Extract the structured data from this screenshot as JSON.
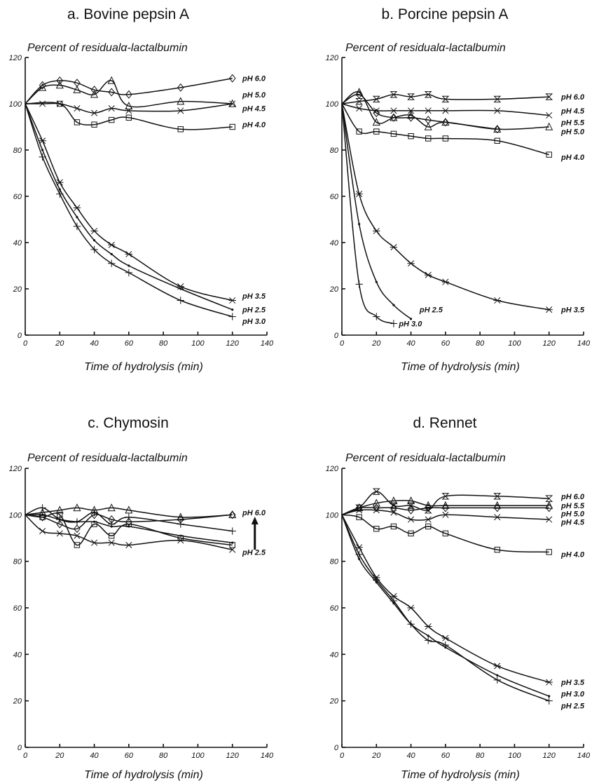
{
  "chart_data": [
    {
      "type": "line",
      "title": "a. Bovine pepsin A",
      "ylabel": "Percent of residualα-lactalbumin",
      "xlabel": "Time of hydrolysis (min)",
      "xlim": [
        0,
        140
      ],
      "ylim": [
        0,
        120
      ],
      "xticks": [
        0,
        20,
        40,
        60,
        80,
        100,
        120,
        140
      ],
      "yticks": [
        0,
        20,
        40,
        60,
        80,
        100,
        120
      ],
      "series": [
        {
          "name": "pH 6.0",
          "marker": "diamond",
          "x": [
            0,
            10,
            20,
            30,
            40,
            50,
            60,
            90,
            120
          ],
          "y": [
            100,
            108,
            110,
            109,
            106,
            105,
            104,
            107,
            111
          ]
        },
        {
          "name": "pH 5.0",
          "marker": "triangle",
          "x": [
            0,
            10,
            20,
            30,
            40,
            50,
            60,
            90,
            120
          ],
          "y": [
            100,
            107,
            108,
            106,
            104,
            110,
            99,
            101,
            100
          ]
        },
        {
          "name": "pH 4.5",
          "marker": "x",
          "x": [
            0,
            10,
            20,
            30,
            40,
            50,
            60,
            90,
            120
          ],
          "y": [
            100,
            100,
            100,
            98,
            96,
            98,
            97,
            97,
            100
          ]
        },
        {
          "name": "pH 4.0",
          "marker": "square",
          "x": [
            0,
            20,
            30,
            40,
            50,
            60,
            90,
            120
          ],
          "y": [
            100,
            100,
            92,
            91,
            93,
            94,
            89,
            90
          ]
        },
        {
          "name": "pH 3.5",
          "marker": "asterisk",
          "x": [
            0,
            10,
            20,
            30,
            40,
            50,
            60,
            90,
            120
          ],
          "y": [
            100,
            84,
            66,
            55,
            45,
            39,
            35,
            21,
            15
          ]
        },
        {
          "name": "pH 2.5",
          "marker": "dot",
          "x": [
            0,
            10,
            20,
            30,
            40,
            50,
            60,
            90,
            120
          ],
          "y": [
            100,
            80,
            63,
            51,
            41,
            35,
            30,
            20,
            11
          ]
        },
        {
          "name": "pH 3.0",
          "marker": "plus",
          "x": [
            0,
            10,
            20,
            30,
            40,
            50,
            60,
            90,
            120
          ],
          "y": [
            100,
            77,
            61,
            47,
            37,
            31,
            27,
            15,
            8
          ]
        }
      ],
      "label_y": {
        "pH 6.0": 111,
        "pH 5.0": 104,
        "pH 4.5": 98,
        "pH 4.0": 91,
        "pH 3.5": 17,
        "pH 2.5": 11,
        "pH 3.0": 6
      }
    },
    {
      "type": "line",
      "title": "b. Porcine pepsin A",
      "ylabel": "Percent of residualα-lactalbumin",
      "xlabel": "Time of hydrolysis (min)",
      "xlim": [
        0,
        140
      ],
      "ylim": [
        0,
        120
      ],
      "xticks": [
        0,
        20,
        40,
        60,
        80,
        100,
        120,
        140
      ],
      "yticks": [
        0,
        20,
        40,
        60,
        80,
        100,
        120
      ],
      "series": [
        {
          "name": "pH 6.0",
          "marker": "hourglass",
          "x": [
            0,
            10,
            20,
            30,
            40,
            50,
            60,
            90,
            120
          ],
          "y": [
            100,
            101,
            102,
            104,
            103,
            104,
            102,
            102,
            103
          ]
        },
        {
          "name": "pH 4.5",
          "marker": "x",
          "x": [
            0,
            10,
            20,
            30,
            40,
            50,
            60,
            90,
            120
          ],
          "y": [
            100,
            98,
            97,
            97,
            97,
            97,
            97,
            97,
            95
          ]
        },
        {
          "name": "pH 5.5",
          "marker": "triangle",
          "x": [
            0,
            10,
            20,
            30,
            40,
            50,
            60,
            90,
            120
          ],
          "y": [
            100,
            105,
            92,
            94,
            95,
            90,
            92,
            89,
            90
          ]
        },
        {
          "name": "pH 5.0",
          "marker": "diamond",
          "x": [
            0,
            10,
            20,
            30,
            40,
            50,
            60,
            90
          ],
          "y": [
            100,
            104,
            96,
            94,
            94,
            93,
            92,
            89
          ]
        },
        {
          "name": "pH 4.0",
          "marker": "square",
          "x": [
            0,
            10,
            20,
            30,
            40,
            50,
            60,
            90,
            120
          ],
          "y": [
            100,
            88,
            88,
            87,
            86,
            85,
            85,
            84,
            78
          ]
        },
        {
          "name": "pH 3.5",
          "marker": "asterisk",
          "x": [
            0,
            10,
            20,
            30,
            40,
            50,
            60,
            90,
            120
          ],
          "y": [
            100,
            61,
            45,
            38,
            31,
            26,
            23,
            15,
            11
          ]
        },
        {
          "name": "pH 2.5",
          "marker": "dot",
          "x": [
            0,
            10,
            20,
            30,
            40
          ],
          "y": [
            100,
            48,
            23,
            13,
            7
          ]
        },
        {
          "name": "pH 3.0",
          "marker": "plus",
          "x": [
            0,
            10,
            20,
            30
          ],
          "y": [
            100,
            22,
            8,
            5
          ]
        }
      ],
      "label_y": {
        "pH 6.0": 103,
        "pH 4.5": 97,
        "pH 5.5": 92,
        "pH 5.0": 88,
        "pH 4.0": 77,
        "pH 3.5": 11,
        "pH 2.5": 11,
        "pH 3.0": 5
      },
      "label_x": {
        "pH 2.5": 45,
        "pH 3.0": 33
      }
    },
    {
      "type": "line",
      "title": "c. Chymosin",
      "ylabel": "Percent of residualα-lactalbumin",
      "xlabel": "Time of hydrolysis (min)",
      "xlim": [
        0,
        140
      ],
      "ylim": [
        0,
        120
      ],
      "xticks": [
        0,
        20,
        40,
        60,
        80,
        100,
        120,
        140
      ],
      "yticks": [
        0,
        20,
        40,
        60,
        80,
        100,
        120
      ],
      "series": [
        {
          "name": "pH 6.0",
          "marker": "triangle",
          "x": [
            0,
            10,
            20,
            30,
            40,
            50,
            60,
            90,
            120
          ],
          "y": [
            100,
            101,
            102,
            103,
            102,
            103,
            102,
            99,
            100
          ]
        },
        {
          "name": "",
          "marker": "diamond",
          "x": [
            0,
            10,
            20,
            30,
            40,
            50,
            60,
            90,
            120
          ],
          "y": [
            100,
            99,
            96,
            94,
            100,
            98,
            97,
            98,
            100
          ]
        },
        {
          "name": "",
          "marker": "plus",
          "x": [
            0,
            10,
            20,
            30,
            40,
            50,
            60,
            90,
            120
          ],
          "y": [
            100,
            103,
            98,
            97,
            101,
            96,
            99,
            96,
            93
          ]
        },
        {
          "name": "",
          "marker": "dot",
          "x": [
            0,
            10,
            20,
            30,
            40,
            50,
            60,
            90,
            120
          ],
          "y": [
            100,
            100,
            98,
            97,
            97,
            95,
            95,
            91,
            88
          ]
        },
        {
          "name": "",
          "marker": "square",
          "x": [
            0,
            10,
            20,
            30,
            40,
            50,
            60,
            90,
            120
          ],
          "y": [
            100,
            99,
            100,
            87,
            96,
            91,
            96,
            90,
            87
          ]
        },
        {
          "name": "pH 2.5",
          "marker": "x",
          "x": [
            0,
            10,
            20,
            30,
            40,
            50,
            60,
            90,
            120
          ],
          "y": [
            100,
            93,
            92,
            91,
            88,
            88,
            87,
            89,
            85
          ]
        }
      ],
      "label_y": {
        "pH 6.0": 101,
        "pH 2.5": 84
      },
      "annotation": {
        "type": "arrow-up",
        "x": 133,
        "y_from": 85,
        "y_to": 98
      }
    },
    {
      "type": "line",
      "title": "d. Rennet",
      "ylabel": "Percent of residualα-lactalbumin",
      "xlabel": "Time of hydrolysis (min)",
      "xlim": [
        0,
        140
      ],
      "ylim": [
        0,
        120
      ],
      "xticks": [
        0,
        20,
        40,
        60,
        80,
        100,
        120,
        140
      ],
      "yticks": [
        0,
        20,
        40,
        60,
        80,
        100,
        120
      ],
      "series": [
        {
          "name": "pH 6.0",
          "marker": "hourglass",
          "x": [
            0,
            10,
            20,
            30,
            40,
            50,
            60,
            90,
            120
          ],
          "y": [
            100,
            103,
            110,
            104,
            104,
            102,
            108,
            108,
            107
          ]
        },
        {
          "name": "pH 5.5",
          "marker": "triangle",
          "x": [
            0,
            10,
            20,
            30,
            40,
            50,
            60,
            90,
            120
          ],
          "y": [
            100,
            103,
            105,
            106,
            106,
            104,
            104,
            104,
            104
          ]
        },
        {
          "name": "pH 5.0",
          "marker": "diamond",
          "x": [
            0,
            10,
            20,
            30,
            40,
            50,
            60,
            90,
            120
          ],
          "y": [
            100,
            103,
            103,
            103,
            102,
            103,
            103,
            103,
            103
          ]
        },
        {
          "name": "pH 4.5",
          "marker": "x",
          "x": [
            0,
            10,
            20,
            30,
            40,
            50,
            60,
            90,
            120
          ],
          "y": [
            100,
            102,
            102,
            101,
            98,
            98,
            100,
            99,
            98
          ]
        },
        {
          "name": "pH 4.0",
          "marker": "square",
          "x": [
            0,
            10,
            20,
            30,
            40,
            50,
            60,
            90,
            120
          ],
          "y": [
            100,
            99,
            94,
            95,
            92,
            95,
            92,
            85,
            84
          ]
        },
        {
          "name": "pH 3.5",
          "marker": "asterisk",
          "x": [
            0,
            10,
            20,
            30,
            40,
            50,
            60,
            90,
            120
          ],
          "y": [
            100,
            86,
            73,
            65,
            60,
            52,
            47,
            35,
            28
          ]
        },
        {
          "name": "pH 3.0",
          "marker": "dot",
          "x": [
            0,
            10,
            20,
            30,
            40,
            50,
            60,
            90,
            120
          ],
          "y": [
            100,
            81,
            71,
            62,
            53,
            48,
            43,
            31,
            22
          ]
        },
        {
          "name": "pH 2.5",
          "marker": "plus",
          "x": [
            0,
            10,
            20,
            30,
            40,
            50,
            60,
            90,
            120
          ],
          "y": [
            100,
            83,
            72,
            63,
            53,
            46,
            44,
            29,
            20
          ]
        }
      ],
      "label_y": {
        "pH 6.0": 108,
        "pH 5.5": 104,
        "pH 5.0": 100.5,
        "pH 4.5": 97,
        "pH 4.0": 83,
        "pH 3.5": 28,
        "pH 3.0": 23,
        "pH 2.5": 18
      }
    }
  ]
}
